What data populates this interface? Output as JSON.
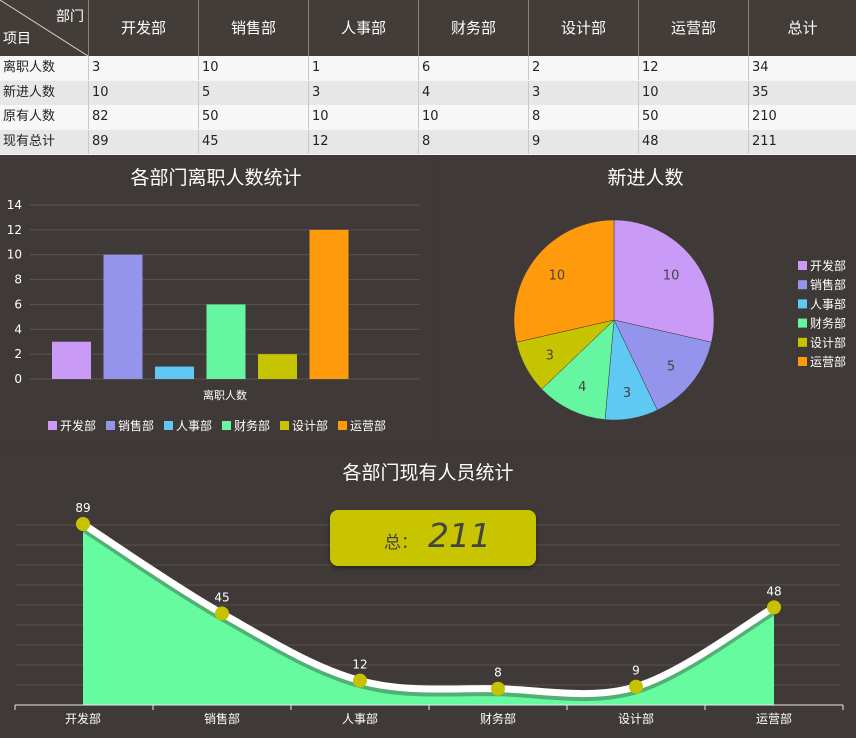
{
  "table": {
    "corner_top": "部门",
    "corner_bottom": "项目",
    "columns": [
      "开发部",
      "销售部",
      "人事部",
      "财务部",
      "设计部",
      "运营部",
      "总计"
    ],
    "rows": [
      {
        "label": "离职人数",
        "values": [
          "3",
          "10",
          "1",
          "6",
          "2",
          "12",
          "34"
        ]
      },
      {
        "label": "新进人数",
        "values": [
          "10",
          "5",
          "3",
          "4",
          "3",
          "10",
          "35"
        ]
      },
      {
        "label": "原有人数",
        "values": [
          "82",
          "50",
          "10",
          "10",
          "8",
          "50",
          "210"
        ]
      },
      {
        "label": "现有总计",
        "values": [
          "89",
          "45",
          "12",
          "8",
          "9",
          "48",
          "211"
        ]
      }
    ]
  },
  "colors": {
    "开发部": "#c99bf6",
    "销售部": "#9494ec",
    "人事部": "#5fc9f3",
    "财务部": "#66f5a0",
    "设计部": "#c6c400",
    "运营部": "#ff9a0d"
  },
  "chart_data": [
    {
      "type": "bar",
      "title": "各部门离职人数统计",
      "xlabel": "离职人数",
      "categories": [
        "开发部",
        "销售部",
        "人事部",
        "财务部",
        "设计部",
        "运营部"
      ],
      "values": [
        3,
        10,
        1,
        6,
        2,
        12
      ],
      "ylim": [
        0,
        14
      ],
      "yticks": [
        0,
        2,
        4,
        6,
        8,
        10,
        12,
        14
      ],
      "legend": "bottom"
    },
    {
      "type": "pie",
      "title": "新进人数",
      "categories": [
        "开发部",
        "销售部",
        "人事部",
        "财务部",
        "设计部",
        "运营部"
      ],
      "values": [
        10,
        5,
        3,
        4,
        3,
        10
      ],
      "legend": "right"
    },
    {
      "type": "area",
      "title": "各部门现有人员统计",
      "categories": [
        "开发部",
        "销售部",
        "人事部",
        "财务部",
        "设计部",
        "运营部"
      ],
      "values": [
        89,
        45,
        12,
        8,
        9,
        48
      ],
      "total_label": "总：",
      "total_value": "211"
    }
  ]
}
